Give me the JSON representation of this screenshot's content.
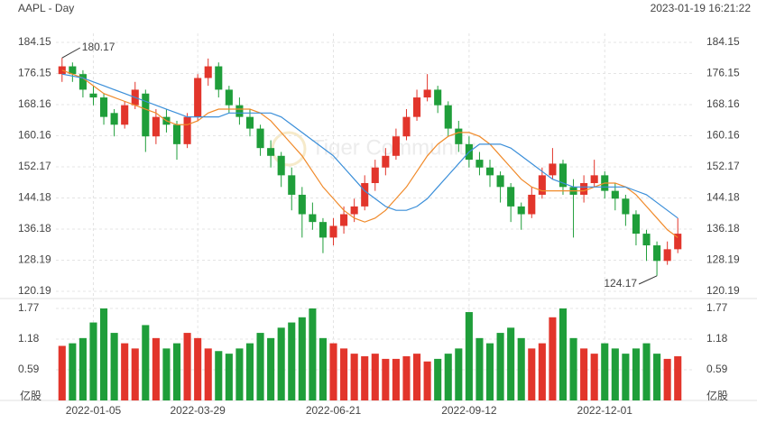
{
  "header": {
    "title": "AAPL - Day",
    "timestamp": "2023-01-19 16:21:22",
    "watermark": "Tiger Community"
  },
  "chart_data": {
    "type": "candlestick",
    "up_color": "#e2352b",
    "down_color": "#1f9e3a",
    "categories": [
      null,
      null,
      null,
      "2022-01-05",
      null,
      null,
      null,
      null,
      null,
      null,
      null,
      null,
      null,
      "2022-03-29",
      null,
      null,
      null,
      null,
      null,
      null,
      null,
      null,
      null,
      null,
      null,
      null,
      "2022-06-21",
      null,
      null,
      null,
      null,
      null,
      null,
      null,
      null,
      null,
      null,
      null,
      null,
      "2022-09-12",
      null,
      null,
      null,
      null,
      null,
      null,
      null,
      null,
      null,
      null,
      null,
      null,
      "2022-12-01",
      null,
      null,
      null,
      null,
      null,
      null,
      null
    ],
    "candles": [
      {
        "open": 176,
        "high": 180.17,
        "low": 174,
        "close": 178
      },
      {
        "open": 178,
        "high": 179,
        "low": 174,
        "close": 176
      },
      {
        "open": 176,
        "high": 177,
        "low": 170,
        "close": 172
      },
      {
        "open": 171,
        "high": 173,
        "low": 168,
        "close": 170
      },
      {
        "open": 170,
        "high": 171,
        "low": 163,
        "close": 165
      },
      {
        "open": 166,
        "high": 167,
        "low": 160,
        "close": 163
      },
      {
        "open": 163,
        "high": 169,
        "low": 162,
        "close": 168
      },
      {
        "open": 168,
        "high": 174,
        "low": 167,
        "close": 172
      },
      {
        "open": 171,
        "high": 172,
        "low": 156,
        "close": 160
      },
      {
        "open": 160,
        "high": 167,
        "low": 158,
        "close": 165
      },
      {
        "open": 165,
        "high": 167,
        "low": 161,
        "close": 163
      },
      {
        "open": 163,
        "high": 164,
        "low": 154,
        "close": 158
      },
      {
        "open": 158,
        "high": 166,
        "low": 157,
        "close": 165
      },
      {
        "open": 165,
        "high": 176,
        "low": 164,
        "close": 175
      },
      {
        "open": 175,
        "high": 180,
        "low": 173,
        "close": 178
      },
      {
        "open": 178,
        "high": 179,
        "low": 170,
        "close": 172
      },
      {
        "open": 172,
        "high": 173,
        "low": 166,
        "close": 168
      },
      {
        "open": 168,
        "high": 170,
        "low": 163,
        "close": 165
      },
      {
        "open": 165,
        "high": 167,
        "low": 160,
        "close": 162
      },
      {
        "open": 162,
        "high": 163,
        "low": 155,
        "close": 157
      },
      {
        "open": 157,
        "high": 159,
        "low": 152,
        "close": 155
      },
      {
        "open": 155,
        "high": 156,
        "low": 147,
        "close": 150
      },
      {
        "open": 150,
        "high": 152,
        "low": 141,
        "close": 145
      },
      {
        "open": 145,
        "high": 147,
        "low": 134,
        "close": 140
      },
      {
        "open": 140,
        "high": 143,
        "low": 136,
        "close": 138
      },
      {
        "open": 138,
        "high": 139,
        "low": 130,
        "close": 134
      },
      {
        "open": 134,
        "high": 139,
        "low": 132,
        "close": 137
      },
      {
        "open": 137,
        "high": 142,
        "low": 135,
        "close": 140
      },
      {
        "open": 140,
        "high": 144,
        "low": 138,
        "close": 142
      },
      {
        "open": 142,
        "high": 150,
        "low": 141,
        "close": 148
      },
      {
        "open": 148,
        "high": 154,
        "low": 146,
        "close": 152
      },
      {
        "open": 152,
        "high": 157,
        "low": 150,
        "close": 155
      },
      {
        "open": 155,
        "high": 162,
        "low": 154,
        "close": 160
      },
      {
        "open": 160,
        "high": 167,
        "low": 159,
        "close": 165
      },
      {
        "open": 165,
        "high": 172,
        "low": 164,
        "close": 170
      },
      {
        "open": 170,
        "high": 176,
        "low": 169,
        "close": 172
      },
      {
        "open": 172,
        "high": 173,
        "low": 166,
        "close": 168
      },
      {
        "open": 168,
        "high": 169,
        "low": 160,
        "close": 162
      },
      {
        "open": 162,
        "high": 164,
        "low": 156,
        "close": 158
      },
      {
        "open": 158,
        "high": 160,
        "low": 152,
        "close": 154
      },
      {
        "open": 154,
        "high": 156,
        "low": 150,
        "close": 152
      },
      {
        "open": 152,
        "high": 154,
        "low": 147,
        "close": 150
      },
      {
        "open": 150,
        "high": 151,
        "low": 143,
        "close": 147
      },
      {
        "open": 147,
        "high": 148,
        "low": 138,
        "close": 142
      },
      {
        "open": 142,
        "high": 143,
        "low": 136,
        "close": 140
      },
      {
        "open": 140,
        "high": 147,
        "low": 139,
        "close": 145
      },
      {
        "open": 145,
        "high": 152,
        "low": 144,
        "close": 150
      },
      {
        "open": 150,
        "high": 157,
        "low": 149,
        "close": 153
      },
      {
        "open": 153,
        "high": 154,
        "low": 145,
        "close": 147
      },
      {
        "open": 147,
        "high": 149,
        "low": 134,
        "close": 145
      },
      {
        "open": 145,
        "high": 150,
        "low": 143,
        "close": 148
      },
      {
        "open": 148,
        "high": 154,
        "low": 147,
        "close": 150
      },
      {
        "open": 150,
        "high": 151,
        "low": 144,
        "close": 146
      },
      {
        "open": 146,
        "high": 148,
        "low": 141,
        "close": 144
      },
      {
        "open": 144,
        "high": 145,
        "low": 137,
        "close": 140
      },
      {
        "open": 140,
        "high": 141,
        "low": 132,
        "close": 135
      },
      {
        "open": 135,
        "high": 136,
        "low": 128,
        "close": 132
      },
      {
        "open": 132,
        "high": 133,
        "low": 124.17,
        "close": 128
      },
      {
        "open": 128,
        "high": 133,
        "low": 127,
        "close": 131
      },
      {
        "open": 131,
        "high": 139,
        "low": 130,
        "close": 135
      }
    ],
    "series": [
      {
        "color": "#f08a2a",
        "values": [
          177,
          176,
          175,
          173,
          171,
          170,
          169,
          168,
          167,
          166,
          164,
          163,
          163,
          164,
          166,
          167,
          167,
          167,
          167,
          166,
          164,
          161,
          158,
          155,
          151,
          147,
          144,
          141,
          139,
          138,
          139,
          141,
          144,
          147,
          151,
          155,
          158,
          160,
          161,
          161,
          160,
          158,
          155,
          152,
          149,
          147,
          146,
          146,
          146,
          146,
          146,
          147,
          148,
          148,
          147,
          145,
          142,
          139,
          136,
          134
        ]
      },
      {
        "color": "#3b8fd9",
        "values": [
          176,
          175.5,
          175,
          174,
          173,
          172,
          171,
          170,
          169,
          168,
          167,
          166,
          165,
          165,
          165,
          165,
          166,
          166,
          166,
          166,
          166,
          165,
          163,
          161,
          159,
          157,
          155,
          152,
          149,
          146,
          144,
          142,
          141,
          141,
          142,
          144,
          147,
          150,
          153,
          156,
          158,
          158,
          158,
          157,
          155,
          153,
          151,
          149,
          148,
          147,
          147,
          147,
          147,
          147,
          147,
          146,
          145,
          143,
          141,
          139
        ]
      }
    ],
    "ylim": [
      120.19,
      184.15
    ],
    "yticks": [
      120.19,
      128.19,
      136.18,
      144.18,
      152.17,
      160.16,
      168.16,
      176.15,
      184.15
    ],
    "grid": true,
    "volume": {
      "unit": "亿股",
      "ylim": [
        0,
        1.77
      ],
      "yticks": [
        0.59,
        1.18,
        1.77
      ],
      "values": [
        1.05,
        1.1,
        1.2,
        1.5,
        1.77,
        1.3,
        1.1,
        1.0,
        1.45,
        1.2,
        1.0,
        1.1,
        1.3,
        1.2,
        1.0,
        0.95,
        0.9,
        1.0,
        1.1,
        1.3,
        1.2,
        1.4,
        1.5,
        1.6,
        1.77,
        1.2,
        1.1,
        1.0,
        0.9,
        0.85,
        0.9,
        0.8,
        0.8,
        0.85,
        0.9,
        0.75,
        0.8,
        0.9,
        1.0,
        1.7,
        1.2,
        1.1,
        1.3,
        1.4,
        1.2,
        1.0,
        1.1,
        1.6,
        1.77,
        1.2,
        1.0,
        0.9,
        1.1,
        1.0,
        0.9,
        1.0,
        1.1,
        0.9,
        0.8,
        0.85
      ]
    }
  }
}
